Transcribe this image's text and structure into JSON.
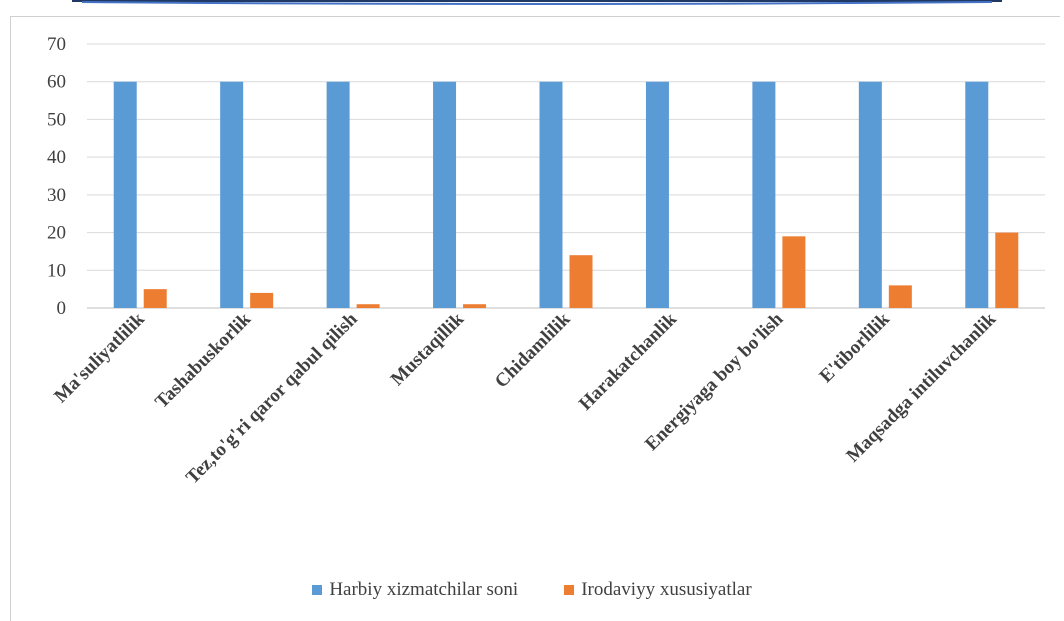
{
  "chart_data": {
    "type": "bar",
    "categories": [
      "Ma'suliyatlilik",
      "Tashabuskorlik",
      "Tez,to'g'ri qaror qabul qilish",
      "Mustaqillik",
      "Chidamlilik",
      "Harakatchanlik",
      "Energiyaga boy bo'lish",
      "E'tiborlilik",
      "Maqsadga intiluvchanlik"
    ],
    "series": [
      {
        "name": "Harbiy xizmatchilar soni",
        "color": "#5b9bd5",
        "values": [
          60,
          60,
          60,
          60,
          60,
          60,
          60,
          60,
          60
        ]
      },
      {
        "name": "Irodaviyy xususiyatlar",
        "color": "#ed7d31",
        "values": [
          5,
          4,
          1,
          1,
          14,
          0,
          19,
          6,
          20
        ]
      }
    ],
    "ylim": [
      0,
      70
    ],
    "yticks": [
      0,
      10,
      20,
      30,
      40,
      50,
      60,
      70
    ],
    "grid": true,
    "legend_position": "bottom"
  }
}
